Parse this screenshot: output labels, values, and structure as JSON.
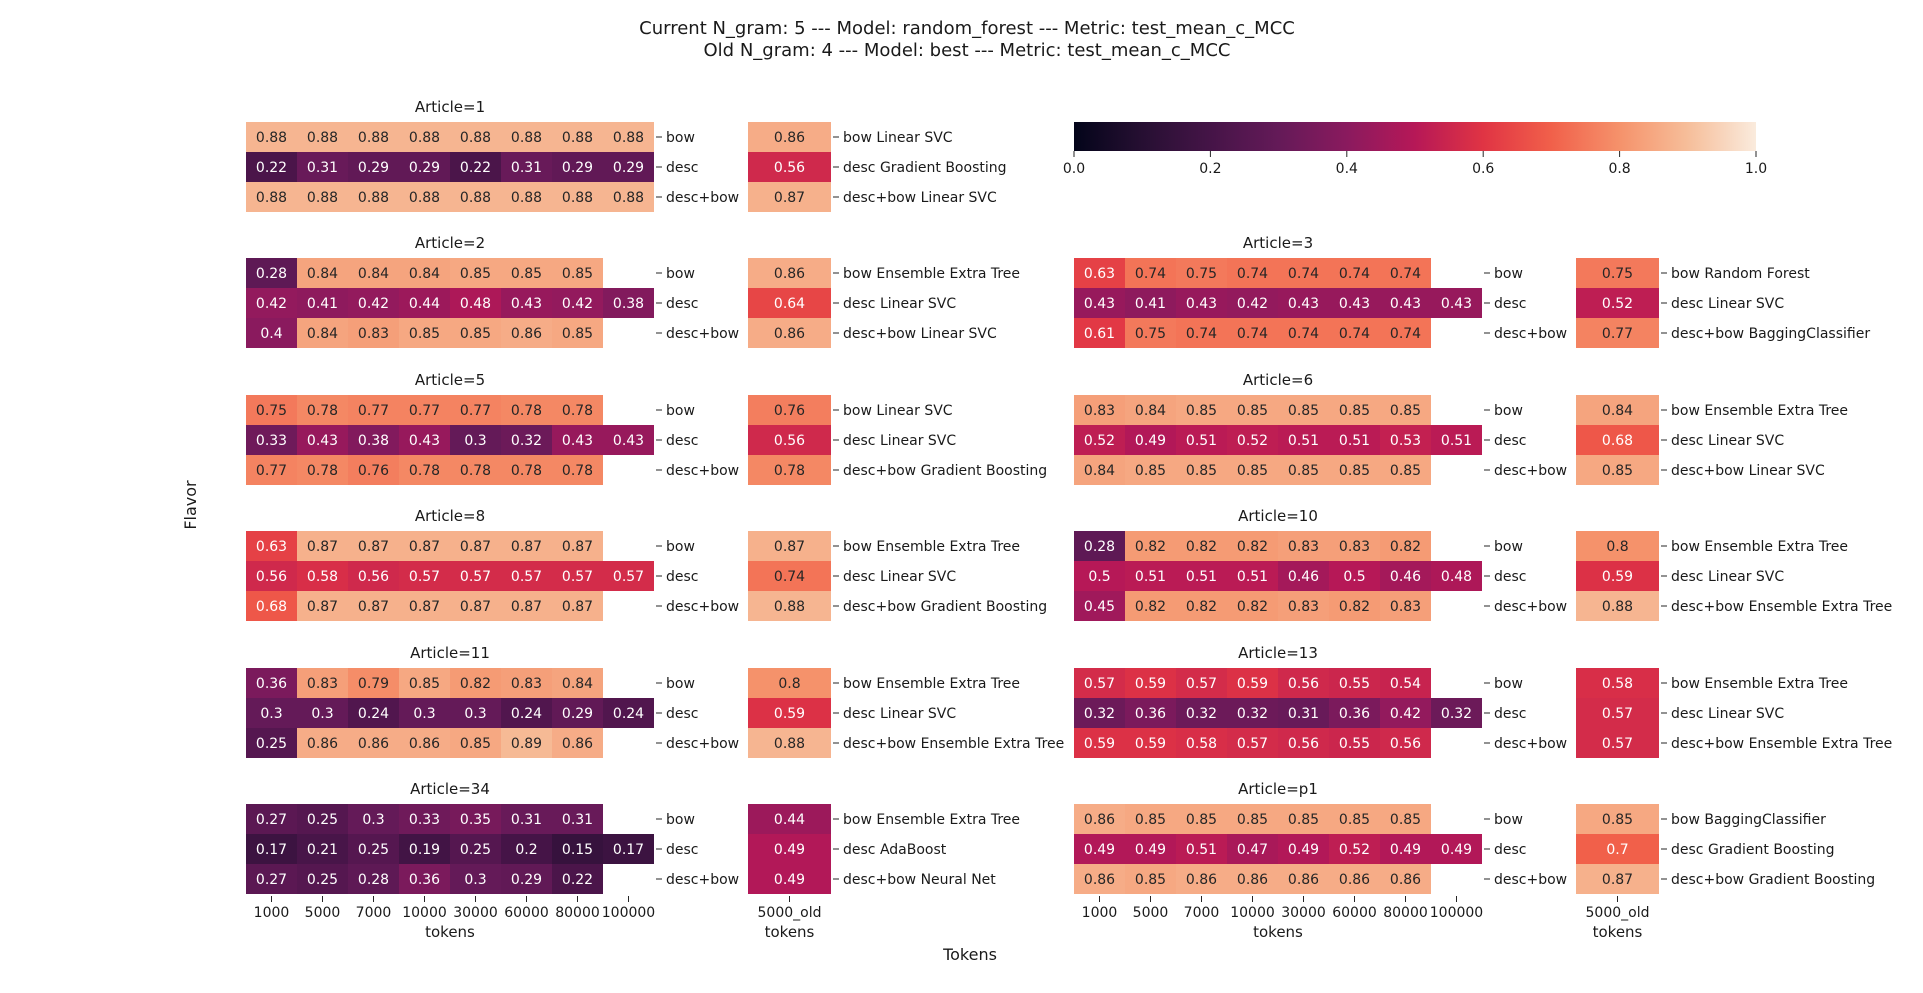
{
  "title_lines": [
    "Current N_gram: 5 --- Model: random_forest --- Metric: test_mean_c_MCC",
    "Old N_gram: 4 --- Model: best --- Metric: test_mean_c_MCC"
  ],
  "chart_data": {
    "type": "heatmap",
    "colormap": "rocket",
    "vmin": 0.0,
    "vmax": 1.0,
    "colorbar_ticks": [
      "0.0",
      "0.2",
      "0.4",
      "0.6",
      "0.8",
      "1.0"
    ],
    "tokens": [
      "1000",
      "5000",
      "7000",
      "10000",
      "30000",
      "60000",
      "80000",
      "100000"
    ],
    "old_token": "5000_old",
    "rows": [
      "bow",
      "desc",
      "desc+bow"
    ],
    "xlabel_panel": "tokens",
    "xlabel_global": "Tokens",
    "ylabel_global": "Flavor",
    "panels": [
      {
        "title": "Article=1",
        "values": [
          [
            0.88,
            0.88,
            0.88,
            0.88,
            0.88,
            0.88,
            0.88,
            0.88
          ],
          [
            0.22,
            0.31,
            0.29,
            0.29,
            0.22,
            0.31,
            0.29,
            0.29
          ],
          [
            0.88,
            0.88,
            0.88,
            0.88,
            0.88,
            0.88,
            0.88,
            0.88
          ]
        ],
        "old_values": [
          0.86,
          0.56,
          0.87
        ],
        "old_labels": [
          "bow Linear SVC",
          "desc Gradient Boosting",
          "desc+bow Linear SVC"
        ]
      },
      {
        "title": "Article=2",
        "values": [
          [
            0.28,
            0.84,
            0.84,
            0.84,
            0.85,
            0.85,
            0.85,
            null
          ],
          [
            0.42,
            0.41,
            0.42,
            0.44,
            0.48,
            0.43,
            0.42,
            0.38
          ],
          [
            0.4,
            0.84,
            0.83,
            0.85,
            0.85,
            0.86,
            0.85,
            null
          ]
        ],
        "old_values": [
          0.86,
          0.64,
          0.86
        ],
        "old_labels": [
          "bow Ensemble Extra Tree",
          "desc Linear SVC",
          "desc+bow Linear SVC"
        ]
      },
      {
        "title": "Article=3",
        "values": [
          [
            0.63,
            0.74,
            0.75,
            0.74,
            0.74,
            0.74,
            0.74,
            null
          ],
          [
            0.43,
            0.41,
            0.43,
            0.42,
            0.43,
            0.43,
            0.43,
            0.43
          ],
          [
            0.61,
            0.75,
            0.74,
            0.74,
            0.74,
            0.74,
            0.74,
            null
          ]
        ],
        "old_values": [
          0.75,
          0.52,
          0.77
        ],
        "old_labels": [
          "bow Random Forest",
          "desc Linear SVC",
          "desc+bow BaggingClassifier"
        ]
      },
      {
        "title": "Article=5",
        "values": [
          [
            0.75,
            0.78,
            0.77,
            0.77,
            0.77,
            0.78,
            0.78,
            null
          ],
          [
            0.33,
            0.43,
            0.38,
            0.43,
            0.3,
            0.32,
            0.43,
            0.43
          ],
          [
            0.77,
            0.78,
            0.76,
            0.78,
            0.78,
            0.78,
            0.78,
            null
          ]
        ],
        "old_values": [
          0.76,
          0.56,
          0.78
        ],
        "old_labels": [
          "bow Linear SVC",
          "desc Linear SVC",
          "desc+bow Gradient Boosting"
        ]
      },
      {
        "title": "Article=6",
        "values": [
          [
            0.83,
            0.84,
            0.85,
            0.85,
            0.85,
            0.85,
            0.85,
            null
          ],
          [
            0.52,
            0.49,
            0.51,
            0.52,
            0.51,
            0.51,
            0.53,
            0.51
          ],
          [
            0.84,
            0.85,
            0.85,
            0.85,
            0.85,
            0.85,
            0.85,
            null
          ]
        ],
        "old_values": [
          0.84,
          0.68,
          0.85
        ],
        "old_labels": [
          "bow Ensemble Extra Tree",
          "desc Linear SVC",
          "desc+bow Linear SVC"
        ]
      },
      {
        "title": "Article=8",
        "values": [
          [
            0.63,
            0.87,
            0.87,
            0.87,
            0.87,
            0.87,
            0.87,
            null
          ],
          [
            0.56,
            0.58,
            0.56,
            0.57,
            0.57,
            0.57,
            0.57,
            0.57
          ],
          [
            0.68,
            0.87,
            0.87,
            0.87,
            0.87,
            0.87,
            0.87,
            null
          ]
        ],
        "old_values": [
          0.87,
          0.74,
          0.88
        ],
        "old_labels": [
          "bow Ensemble Extra Tree",
          "desc Linear SVC",
          "desc+bow Gradient Boosting"
        ]
      },
      {
        "title": "Article=10",
        "values": [
          [
            0.28,
            0.82,
            0.82,
            0.82,
            0.83,
            0.83,
            0.82,
            null
          ],
          [
            0.5,
            0.51,
            0.51,
            0.51,
            0.46,
            0.5,
            0.46,
            0.48
          ],
          [
            0.45,
            0.82,
            0.82,
            0.82,
            0.83,
            0.82,
            0.83,
            null
          ]
        ],
        "old_values": [
          0.8,
          0.59,
          0.88
        ],
        "old_labels": [
          "bow Ensemble Extra Tree",
          "desc Linear SVC",
          "desc+bow Ensemble Extra Tree"
        ]
      },
      {
        "title": "Article=11",
        "values": [
          [
            0.36,
            0.83,
            0.79,
            0.85,
            0.82,
            0.83,
            0.84,
            null
          ],
          [
            0.3,
            0.3,
            0.24,
            0.3,
            0.3,
            0.24,
            0.29,
            0.24
          ],
          [
            0.25,
            0.86,
            0.86,
            0.86,
            0.85,
            0.89,
            0.86,
            null
          ]
        ],
        "old_values": [
          0.8,
          0.59,
          0.88
        ],
        "old_labels": [
          "bow Ensemble Extra Tree",
          "desc Linear SVC",
          "desc+bow Ensemble Extra Tree"
        ]
      },
      {
        "title": "Article=13",
        "values": [
          [
            0.57,
            0.59,
            0.57,
            0.59,
            0.56,
            0.55,
            0.54,
            null
          ],
          [
            0.32,
            0.36,
            0.32,
            0.32,
            0.31,
            0.36,
            0.42,
            0.32
          ],
          [
            0.59,
            0.59,
            0.58,
            0.57,
            0.56,
            0.55,
            0.56,
            null
          ]
        ],
        "old_values": [
          0.58,
          0.57,
          0.57
        ],
        "old_labels": [
          "bow Ensemble Extra Tree",
          "desc Linear SVC",
          "desc+bow Ensemble Extra Tree"
        ]
      },
      {
        "title": "Article=34",
        "values": [
          [
            0.27,
            0.25,
            0.3,
            0.33,
            0.35,
            0.31,
            0.31,
            null
          ],
          [
            0.17,
            0.21,
            0.25,
            0.19,
            0.25,
            0.2,
            0.15,
            0.17
          ],
          [
            0.27,
            0.25,
            0.28,
            0.36,
            0.3,
            0.29,
            0.22,
            null
          ]
        ],
        "old_values": [
          0.44,
          0.49,
          0.49
        ],
        "old_labels": [
          "bow Ensemble Extra Tree",
          "desc AdaBoost",
          "desc+bow Neural Net"
        ]
      },
      {
        "title": "Article=p1",
        "values": [
          [
            0.86,
            0.85,
            0.85,
            0.85,
            0.85,
            0.85,
            0.85,
            null
          ],
          [
            0.49,
            0.49,
            0.51,
            0.47,
            0.49,
            0.52,
            0.49,
            0.49
          ],
          [
            0.86,
            0.85,
            0.86,
            0.86,
            0.86,
            0.86,
            0.86,
            null
          ]
        ],
        "old_values": [
          0.85,
          0.7,
          0.87
        ],
        "old_labels": [
          "bow BaggingClassifier",
          "desc Gradient Boosting",
          "desc+bow Gradient Boosting"
        ]
      }
    ]
  }
}
